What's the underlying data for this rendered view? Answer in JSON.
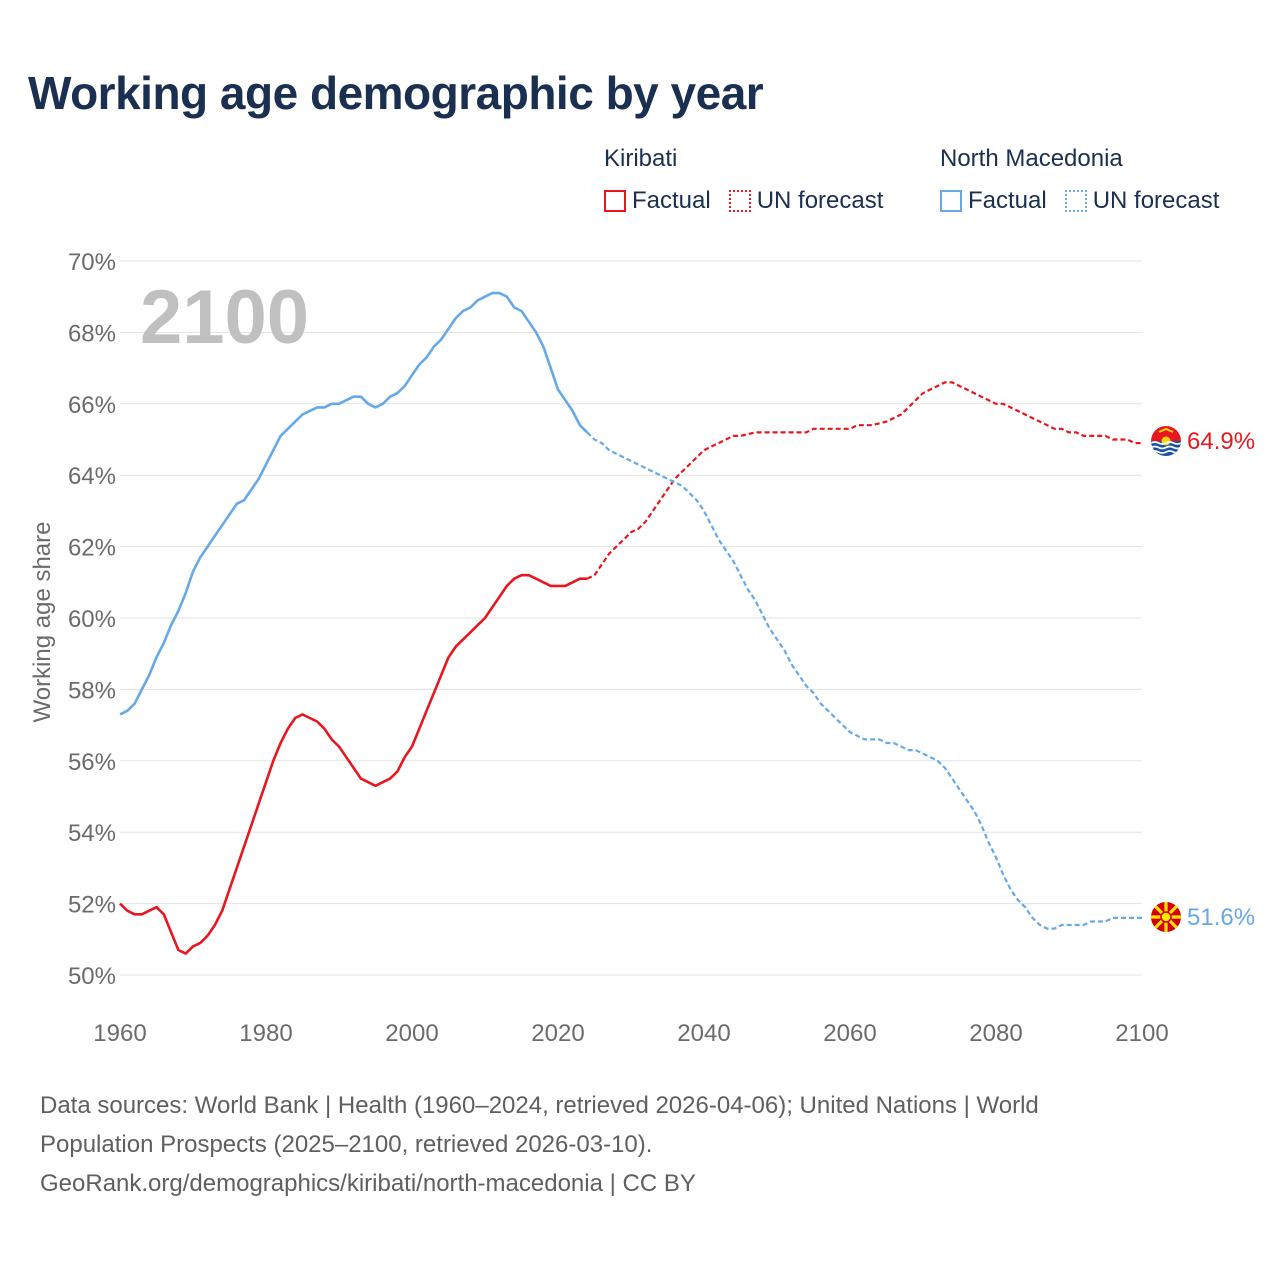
{
  "title": "Working age demographic by year",
  "legend": {
    "groups": [
      {
        "name": "Kiribati",
        "factual_label": "Factual",
        "forecast_label": "UN forecast",
        "color": "#e8171f"
      },
      {
        "name": "North Macedonia",
        "factual_label": "Factual",
        "forecast_label": "UN forecast",
        "color": "#66a9e6"
      }
    ]
  },
  "chart_data": {
    "type": "line",
    "title": "Working age demographic by year",
    "xlabel": "",
    "ylabel": "Working age share",
    "xlim": [
      1960,
      2100
    ],
    "ylim": [
      50,
      70
    ],
    "x_ticks": [
      "1960",
      "1980",
      "2000",
      "2020",
      "2040",
      "2060",
      "2080",
      "2100"
    ],
    "y_ticks": [
      "50%",
      "52%",
      "54%",
      "56%",
      "58%",
      "60%",
      "62%",
      "64%",
      "66%",
      "68%",
      "70%"
    ],
    "year_watermark": "2100",
    "series": [
      {
        "name": "Kiribati",
        "color": "#e8171f",
        "flag": "kiribati-flag",
        "end_label": "64.9%",
        "factual": [
          [
            1960,
            52.0
          ],
          [
            1961,
            51.8
          ],
          [
            1962,
            51.7
          ],
          [
            1963,
            51.7
          ],
          [
            1964,
            51.8
          ],
          [
            1965,
            51.9
          ],
          [
            1966,
            51.7
          ],
          [
            1967,
            51.2
          ],
          [
            1968,
            50.7
          ],
          [
            1969,
            50.6
          ],
          [
            1970,
            50.8
          ],
          [
            1971,
            50.9
          ],
          [
            1972,
            51.1
          ],
          [
            1973,
            51.4
          ],
          [
            1974,
            51.8
          ],
          [
            1975,
            52.4
          ],
          [
            1976,
            53.0
          ],
          [
            1977,
            53.6
          ],
          [
            1978,
            54.2
          ],
          [
            1979,
            54.8
          ],
          [
            1980,
            55.4
          ],
          [
            1981,
            56.0
          ],
          [
            1982,
            56.5
          ],
          [
            1983,
            56.9
          ],
          [
            1984,
            57.2
          ],
          [
            1985,
            57.3
          ],
          [
            1986,
            57.2
          ],
          [
            1987,
            57.1
          ],
          [
            1988,
            56.9
          ],
          [
            1989,
            56.6
          ],
          [
            1990,
            56.4
          ],
          [
            1991,
            56.1
          ],
          [
            1992,
            55.8
          ],
          [
            1993,
            55.5
          ],
          [
            1994,
            55.4
          ],
          [
            1995,
            55.3
          ],
          [
            1996,
            55.4
          ],
          [
            1997,
            55.5
          ],
          [
            1998,
            55.7
          ],
          [
            1999,
            56.1
          ],
          [
            2000,
            56.4
          ],
          [
            2001,
            56.9
          ],
          [
            2002,
            57.4
          ],
          [
            2003,
            57.9
          ],
          [
            2004,
            58.4
          ],
          [
            2005,
            58.9
          ],
          [
            2006,
            59.2
          ],
          [
            2007,
            59.4
          ],
          [
            2008,
            59.6
          ],
          [
            2009,
            59.8
          ],
          [
            2010,
            60.0
          ],
          [
            2011,
            60.3
          ],
          [
            2012,
            60.6
          ],
          [
            2013,
            60.9
          ],
          [
            2014,
            61.1
          ],
          [
            2015,
            61.2
          ],
          [
            2016,
            61.2
          ],
          [
            2017,
            61.1
          ],
          [
            2018,
            61.0
          ],
          [
            2019,
            60.9
          ],
          [
            2020,
            60.9
          ],
          [
            2021,
            60.9
          ],
          [
            2022,
            61.0
          ],
          [
            2023,
            61.1
          ],
          [
            2024,
            61.1
          ]
        ],
        "forecast": [
          [
            2024,
            61.1
          ],
          [
            2025,
            61.2
          ],
          [
            2026,
            61.5
          ],
          [
            2027,
            61.8
          ],
          [
            2028,
            62.0
          ],
          [
            2029,
            62.2
          ],
          [
            2030,
            62.4
          ],
          [
            2031,
            62.5
          ],
          [
            2032,
            62.7
          ],
          [
            2033,
            63.0
          ],
          [
            2034,
            63.3
          ],
          [
            2035,
            63.6
          ],
          [
            2036,
            63.9
          ],
          [
            2037,
            64.1
          ],
          [
            2038,
            64.3
          ],
          [
            2039,
            64.5
          ],
          [
            2040,
            64.7
          ],
          [
            2041,
            64.8
          ],
          [
            2042,
            64.9
          ],
          [
            2043,
            65.0
          ],
          [
            2044,
            65.1
          ],
          [
            2045,
            65.1
          ],
          [
            2047,
            65.2
          ],
          [
            2050,
            65.2
          ],
          [
            2052,
            65.2
          ],
          [
            2054,
            65.2
          ],
          [
            2055,
            65.3
          ],
          [
            2058,
            65.3
          ],
          [
            2060,
            65.3
          ],
          [
            2061,
            65.4
          ],
          [
            2063,
            65.4
          ],
          [
            2065,
            65.5
          ],
          [
            2067,
            65.7
          ],
          [
            2068,
            65.9
          ],
          [
            2069,
            66.1
          ],
          [
            2070,
            66.3
          ],
          [
            2071,
            66.4
          ],
          [
            2072,
            66.5
          ],
          [
            2073,
            66.6
          ],
          [
            2074,
            66.6
          ],
          [
            2075,
            66.5
          ],
          [
            2076,
            66.4
          ],
          [
            2077,
            66.3
          ],
          [
            2078,
            66.2
          ],
          [
            2079,
            66.1
          ],
          [
            2080,
            66.0
          ],
          [
            2081,
            66.0
          ],
          [
            2082,
            65.9
          ],
          [
            2083,
            65.8
          ],
          [
            2084,
            65.7
          ],
          [
            2085,
            65.6
          ],
          [
            2086,
            65.5
          ],
          [
            2087,
            65.4
          ],
          [
            2088,
            65.3
          ],
          [
            2089,
            65.3
          ],
          [
            2090,
            65.2
          ],
          [
            2091,
            65.2
          ],
          [
            2092,
            65.1
          ],
          [
            2093,
            65.1
          ],
          [
            2095,
            65.1
          ],
          [
            2096,
            65.0
          ],
          [
            2098,
            65.0
          ],
          [
            2099,
            64.9
          ],
          [
            2100,
            64.9
          ]
        ]
      },
      {
        "name": "North Macedonia",
        "color": "#66a9e6",
        "flag": "north-macedonia-flag",
        "end_label": "51.6%",
        "factual": [
          [
            1960,
            57.3
          ],
          [
            1961,
            57.4
          ],
          [
            1962,
            57.6
          ],
          [
            1963,
            58.0
          ],
          [
            1964,
            58.4
          ],
          [
            1965,
            58.9
          ],
          [
            1966,
            59.3
          ],
          [
            1967,
            59.8
          ],
          [
            1968,
            60.2
          ],
          [
            1969,
            60.7
          ],
          [
            1970,
            61.3
          ],
          [
            1971,
            61.7
          ],
          [
            1972,
            62.0
          ],
          [
            1973,
            62.3
          ],
          [
            1974,
            62.6
          ],
          [
            1975,
            62.9
          ],
          [
            1976,
            63.2
          ],
          [
            1977,
            63.3
          ],
          [
            1978,
            63.6
          ],
          [
            1979,
            63.9
          ],
          [
            1980,
            64.3
          ],
          [
            1981,
            64.7
          ],
          [
            1982,
            65.1
          ],
          [
            1983,
            65.3
          ],
          [
            1984,
            65.5
          ],
          [
            1985,
            65.7
          ],
          [
            1986,
            65.8
          ],
          [
            1987,
            65.9
          ],
          [
            1988,
            65.9
          ],
          [
            1989,
            66.0
          ],
          [
            1990,
            66.0
          ],
          [
            1991,
            66.1
          ],
          [
            1992,
            66.2
          ],
          [
            1993,
            66.2
          ],
          [
            1994,
            66.0
          ],
          [
            1995,
            65.9
          ],
          [
            1996,
            66.0
          ],
          [
            1997,
            66.2
          ],
          [
            1998,
            66.3
          ],
          [
            1999,
            66.5
          ],
          [
            2000,
            66.8
          ],
          [
            2001,
            67.1
          ],
          [
            2002,
            67.3
          ],
          [
            2003,
            67.6
          ],
          [
            2004,
            67.8
          ],
          [
            2005,
            68.1
          ],
          [
            2006,
            68.4
          ],
          [
            2007,
            68.6
          ],
          [
            2008,
            68.7
          ],
          [
            2009,
            68.9
          ],
          [
            2010,
            69.0
          ],
          [
            2011,
            69.1
          ],
          [
            2012,
            69.1
          ],
          [
            2013,
            69.0
          ],
          [
            2014,
            68.7
          ],
          [
            2015,
            68.6
          ],
          [
            2016,
            68.3
          ],
          [
            2017,
            68.0
          ],
          [
            2018,
            67.6
          ],
          [
            2019,
            67.0
          ],
          [
            2020,
            66.4
          ],
          [
            2021,
            66.1
          ],
          [
            2022,
            65.8
          ],
          [
            2023,
            65.4
          ],
          [
            2024,
            65.2
          ]
        ],
        "forecast": [
          [
            2024,
            65.2
          ],
          [
            2025,
            65.0
          ],
          [
            2026,
            64.9
          ],
          [
            2027,
            64.7
          ],
          [
            2028,
            64.6
          ],
          [
            2029,
            64.5
          ],
          [
            2030,
            64.4
          ],
          [
            2031,
            64.3
          ],
          [
            2032,
            64.2
          ],
          [
            2033,
            64.1
          ],
          [
            2034,
            64.0
          ],
          [
            2035,
            63.9
          ],
          [
            2036,
            63.8
          ],
          [
            2037,
            63.7
          ],
          [
            2038,
            63.5
          ],
          [
            2039,
            63.3
          ],
          [
            2040,
            63.0
          ],
          [
            2041,
            62.6
          ],
          [
            2042,
            62.2
          ],
          [
            2043,
            61.9
          ],
          [
            2044,
            61.6
          ],
          [
            2045,
            61.2
          ],
          [
            2046,
            60.8
          ],
          [
            2047,
            60.5
          ],
          [
            2048,
            60.1
          ],
          [
            2049,
            59.7
          ],
          [
            2050,
            59.4
          ],
          [
            2051,
            59.1
          ],
          [
            2052,
            58.7
          ],
          [
            2053,
            58.4
          ],
          [
            2054,
            58.1
          ],
          [
            2055,
            57.9
          ],
          [
            2056,
            57.6
          ],
          [
            2057,
            57.4
          ],
          [
            2058,
            57.2
          ],
          [
            2059,
            57.0
          ],
          [
            2060,
            56.8
          ],
          [
            2061,
            56.7
          ],
          [
            2062,
            56.6
          ],
          [
            2063,
            56.6
          ],
          [
            2064,
            56.6
          ],
          [
            2065,
            56.5
          ],
          [
            2066,
            56.5
          ],
          [
            2067,
            56.4
          ],
          [
            2068,
            56.3
          ],
          [
            2069,
            56.3
          ],
          [
            2070,
            56.2
          ],
          [
            2071,
            56.1
          ],
          [
            2072,
            56.0
          ],
          [
            2073,
            55.8
          ],
          [
            2074,
            55.5
          ],
          [
            2075,
            55.2
          ],
          [
            2076,
            54.9
          ],
          [
            2077,
            54.6
          ],
          [
            2078,
            54.2
          ],
          [
            2079,
            53.7
          ],
          [
            2080,
            53.3
          ],
          [
            2081,
            52.8
          ],
          [
            2082,
            52.4
          ],
          [
            2083,
            52.1
          ],
          [
            2084,
            51.9
          ],
          [
            2085,
            51.6
          ],
          [
            2086,
            51.4
          ],
          [
            2087,
            51.3
          ],
          [
            2088,
            51.3
          ],
          [
            2089,
            51.4
          ],
          [
            2090,
            51.4
          ],
          [
            2091,
            51.4
          ],
          [
            2092,
            51.4
          ],
          [
            2093,
            51.5
          ],
          [
            2094,
            51.5
          ],
          [
            2095,
            51.5
          ],
          [
            2096,
            51.6
          ],
          [
            2097,
            51.6
          ],
          [
            2098,
            51.6
          ],
          [
            2099,
            51.6
          ],
          [
            2100,
            51.6
          ]
        ]
      }
    ]
  },
  "footer": {
    "line1": "Data sources: World Bank | Health (1960–2024, retrieved 2026-04-06); United Nations | World",
    "line2": "Population Prospects (2025–2100, retrieved 2026-03-10).",
    "line3": "GeoRank.org/demographics/kiribati/north-macedonia | CC BY"
  }
}
